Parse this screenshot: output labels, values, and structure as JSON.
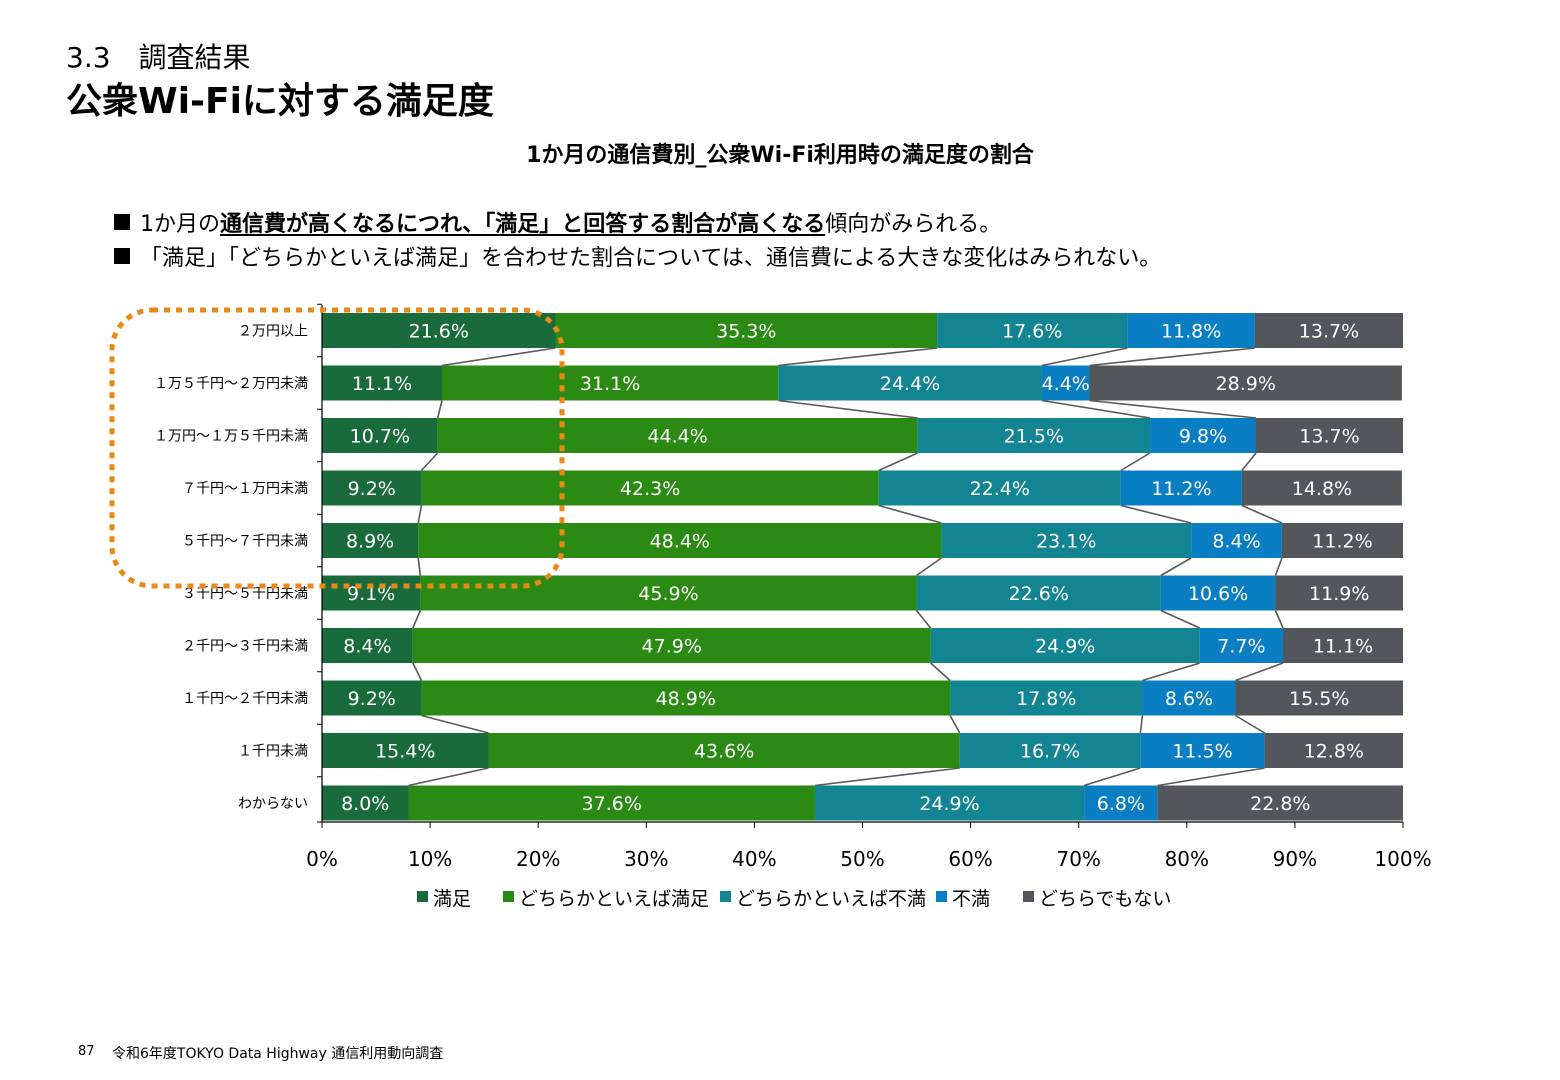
{
  "header": {
    "section": "3.3　調査結果",
    "title": "公衆Wi-Fiに対する満足度"
  },
  "bullets": [
    {
      "pre": "1か月の",
      "emph": "通信費が高くなるにつれ、「満足」と回答する割合が高くなる",
      "post": "傾向がみられる。"
    },
    {
      "pre": "「満足」「どちらかといえば満足」を合わせた割合については、通信費による大きな変化はみられない。",
      "emph": "",
      "post": ""
    }
  ],
  "chart_data": {
    "type": "bar",
    "orientation": "horizontal",
    "stacked": true,
    "title": "1か月の通信費別_公衆Wi-Fi利用時の満足度の割合",
    "categories": [
      "２万円以上",
      "１万５千円～２万円未満",
      "１万円～１万５千円未満",
      "７千円～１万円未満",
      "５千円～７千円未満",
      "３千円～５千円未満",
      "２千円～３千円未満",
      "１千円～２千円未満",
      "１千円未満",
      "わからない"
    ],
    "series": [
      {
        "name": "満足",
        "color": "#1a6b3c",
        "values": [
          21.6,
          11.1,
          10.7,
          9.2,
          8.9,
          9.1,
          8.4,
          9.2,
          15.4,
          8.0
        ]
      },
      {
        "name": "どちらかといえば満足",
        "color": "#2b8a14",
        "values": [
          35.3,
          31.1,
          44.4,
          42.3,
          48.4,
          45.9,
          47.9,
          48.9,
          43.6,
          37.6
        ]
      },
      {
        "name": "どちらかといえば不満",
        "color": "#138592",
        "values": [
          17.6,
          24.4,
          21.5,
          22.4,
          23.1,
          22.6,
          24.9,
          17.8,
          16.7,
          24.9
        ]
      },
      {
        "name": "不満",
        "color": "#0a7ec2",
        "values": [
          11.8,
          4.4,
          9.8,
          11.2,
          8.4,
          10.6,
          7.7,
          8.6,
          11.5,
          6.8
        ]
      },
      {
        "name": "どちらでもない",
        "color": "#53565a",
        "values": [
          13.7,
          28.9,
          13.7,
          14.8,
          11.2,
          11.9,
          11.1,
          15.5,
          12.8,
          22.8
        ]
      }
    ],
    "xlim": [
      0,
      100
    ],
    "x_ticks": [
      "0%",
      "10%",
      "20%",
      "30%",
      "40%",
      "50%",
      "60%",
      "70%",
      "80%",
      "90%",
      "100%"
    ],
    "data_labels_suffix": "%",
    "legend_position": "bottom",
    "highlight": {
      "rows": [
        "２万円以上",
        "１万５千円～２万円未満",
        "１万円～１万５千円未満",
        "７千円～１万円未満",
        "５千円～７千円未満"
      ],
      "style": "dotted",
      "color": "#e8891a"
    }
  },
  "footer": {
    "page_number": "87",
    "source": "令和6年度TOKYO Data Highway 通信利用動向調査"
  }
}
